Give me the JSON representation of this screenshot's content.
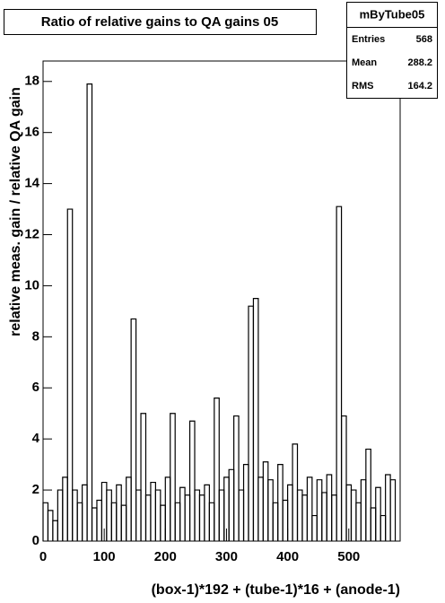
{
  "chart_data": {
    "type": "histogram",
    "title": "Ratio of relative gains to QA gains 05",
    "xlabel": "(box-1)*192 + (tube-1)*16 + (anode-1)",
    "ylabel": "relative meas. gain / relative QA gain",
    "color": "#000000",
    "bins": [
      0,
      8,
      16,
      24,
      32,
      40,
      48,
      56,
      64,
      72,
      80,
      88,
      96,
      104,
      112,
      120,
      128,
      136,
      144,
      152,
      160,
      168,
      176,
      184,
      192,
      200,
      208,
      216,
      224,
      232,
      240,
      248,
      256,
      264,
      272,
      280,
      288,
      296,
      304,
      312,
      320,
      328,
      336,
      344,
      352,
      360,
      368,
      376,
      384,
      392,
      400,
      408,
      416,
      424,
      432,
      440,
      448,
      456,
      464,
      472,
      480,
      488,
      496,
      504,
      512,
      520,
      528,
      536,
      544,
      552,
      560,
      568,
      576
    ],
    "values": [
      1.5,
      1.2,
      0.8,
      2.0,
      2.5,
      13.0,
      2.0,
      1.5,
      2.2,
      17.9,
      1.3,
      1.6,
      2.3,
      2.0,
      1.5,
      2.2,
      1.4,
      2.5,
      8.7,
      2.0,
      5.0,
      1.8,
      2.3,
      2.0,
      1.4,
      2.5,
      5.0,
      1.5,
      2.1,
      1.8,
      4.7,
      2.0,
      1.8,
      2.2,
      1.5,
      5.6,
      2.0,
      2.5,
      2.8,
      4.9,
      2.0,
      3.0,
      9.2,
      9.5,
      2.5,
      3.1,
      2.4,
      1.5,
      3.0,
      1.6,
      2.2,
      3.8,
      2.0,
      1.8,
      2.5,
      1.0,
      2.4,
      1.9,
      2.6,
      1.8,
      13.1,
      4.9,
      2.2,
      2.0,
      1.5,
      2.4,
      3.6,
      1.3,
      2.1,
      1.0,
      2.6,
      2.4
    ],
    "xlim": [
      0,
      584
    ],
    "xticks": [
      0,
      100,
      200,
      300,
      400,
      500
    ],
    "ylim": [
      0,
      18.8
    ],
    "yticks": [
      0,
      2,
      4,
      6,
      8,
      10,
      12,
      14,
      16,
      18
    ],
    "stats": {
      "title": "mByTube05",
      "rows": [
        [
          "Entries",
          "568"
        ],
        [
          "Mean",
          "288.2"
        ],
        [
          "RMS",
          "164.2"
        ]
      ]
    }
  }
}
